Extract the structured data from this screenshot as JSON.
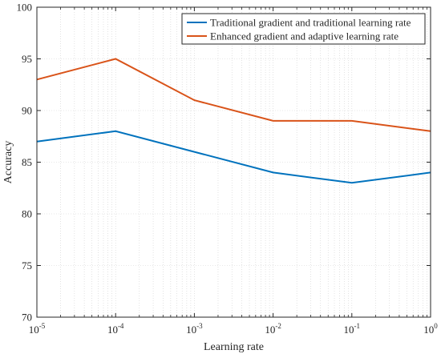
{
  "chart_data": {
    "type": "line",
    "xscale": "log",
    "x": [
      1e-05,
      0.0001,
      0.001,
      0.01,
      0.1,
      1
    ],
    "xlim": [
      1e-05,
      1
    ],
    "ylim": [
      70,
      100
    ],
    "xlabel": "Learning rate",
    "ylabel": "Accuracy",
    "grid": "on (dotted, minor log gridlines)",
    "legend_position": "top-right",
    "x_tick_labels": [
      {
        "base": "10",
        "exp": "-5"
      },
      {
        "base": "10",
        "exp": "-4"
      },
      {
        "base": "10",
        "exp": "-3"
      },
      {
        "base": "10",
        "exp": "-2"
      },
      {
        "base": "10",
        "exp": "-1"
      },
      {
        "base": "10",
        "exp": "0"
      }
    ],
    "y_ticks": [
      "70",
      "75",
      "80",
      "85",
      "90",
      "95",
      "100"
    ],
    "series": [
      {
        "name": "Traditional gradient and traditional learning rate",
        "color": "#0072BD",
        "values": [
          87,
          88,
          86,
          84,
          83,
          84
        ]
      },
      {
        "name": "Enhanced gradient and adaptive learning rate",
        "color": "#D95319",
        "values": [
          93,
          95,
          91,
          89,
          89,
          88
        ]
      }
    ]
  }
}
